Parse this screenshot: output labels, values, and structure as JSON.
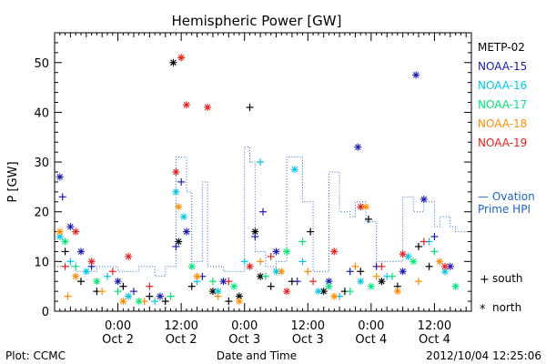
{
  "chart_data": {
    "type": "scatter",
    "title": "Hemispheric Power [GW]",
    "ylabel": "P [GW]",
    "xlabel": "Date and Time",
    "ylim": [
      0,
      56
    ],
    "yticks": [
      0,
      10,
      20,
      30,
      40,
      50
    ],
    "xlim": [
      0,
      79
    ],
    "xticks": [
      {
        "x": 12,
        "time": "0:00",
        "date": "Oct 2"
      },
      {
        "x": 24,
        "time": "12:00",
        "date": "Oct 2"
      },
      {
        "x": 36,
        "time": "0:00",
        "date": "Oct 3"
      },
      {
        "x": 48,
        "time": "12:00",
        "date": "Oct 3"
      },
      {
        "x": 60,
        "time": "0:00",
        "date": "Oct 4"
      },
      {
        "x": 72,
        "time": "12:00",
        "date": "Oct 4"
      }
    ],
    "grid": false,
    "legend_placement": "right",
    "symbols": {
      "south": {
        "marker": "+",
        "label": "south"
      },
      "north": {
        "marker": "*",
        "label": "north"
      }
    },
    "series": [
      {
        "name": "METP-02",
        "color": "#000000",
        "points": [
          [
            2,
            12,
            "+"
          ],
          [
            5,
            6,
            "+"
          ],
          [
            8,
            4,
            "+"
          ],
          [
            13,
            5,
            "+"
          ],
          [
            18,
            3,
            "+"
          ],
          [
            21,
            2,
            "+"
          ],
          [
            22.5,
            50,
            "*"
          ],
          [
            23.5,
            14,
            "*"
          ],
          [
            26,
            5,
            "+"
          ],
          [
            30,
            4,
            "*"
          ],
          [
            33,
            2,
            "+"
          ],
          [
            35,
            3,
            "*"
          ],
          [
            37,
            41,
            "+"
          ],
          [
            38,
            16,
            "*"
          ],
          [
            39,
            7,
            "*"
          ],
          [
            41,
            5,
            "+"
          ],
          [
            45,
            6,
            "+"
          ],
          [
            48.5,
            16,
            "+"
          ],
          [
            51,
            4,
            "*"
          ],
          [
            55,
            4,
            "+"
          ],
          [
            58,
            8,
            "+"
          ],
          [
            59.5,
            18.5,
            "+"
          ],
          [
            62,
            6,
            "*"
          ],
          [
            65,
            5,
            "+"
          ],
          [
            69,
            13,
            "+"
          ],
          [
            71,
            9,
            "+"
          ]
        ]
      },
      {
        "name": "NOAA-15",
        "color": "#1a1ab4",
        "points": [
          [
            1,
            27,
            "*"
          ],
          [
            1.5,
            23,
            "+"
          ],
          [
            3,
            17,
            "*"
          ],
          [
            5,
            12,
            "*"
          ],
          [
            7,
            9,
            "+"
          ],
          [
            12,
            6,
            "*"
          ],
          [
            15,
            4,
            "+"
          ],
          [
            20,
            3,
            "*"
          ],
          [
            23,
            13,
            "+"
          ],
          [
            24,
            26,
            "+"
          ],
          [
            25,
            16,
            "*"
          ],
          [
            28,
            7,
            "+"
          ],
          [
            32,
            6,
            "*"
          ],
          [
            38,
            15,
            "+"
          ],
          [
            39.5,
            20,
            "+"
          ],
          [
            42,
            12,
            "*"
          ],
          [
            46,
            6,
            "+"
          ],
          [
            52,
            6,
            "*"
          ],
          [
            56,
            8,
            "+"
          ],
          [
            57.5,
            33,
            "*"
          ],
          [
            61,
            9,
            "+"
          ],
          [
            66,
            8,
            "*"
          ],
          [
            68.5,
            47.5,
            "*"
          ],
          [
            70,
            22.5,
            "*"
          ],
          [
            72,
            15,
            "+"
          ],
          [
            75,
            9,
            "*"
          ]
        ]
      },
      {
        "name": "NOAA-16",
        "color": "#00c8e6",
        "points": [
          [
            1,
            15,
            "*"
          ],
          [
            3,
            10,
            "+"
          ],
          [
            6,
            8,
            "*"
          ],
          [
            10,
            7,
            "+"
          ],
          [
            14,
            3,
            "*"
          ],
          [
            19,
            2,
            "+"
          ],
          [
            23,
            24,
            "*"
          ],
          [
            24.5,
            19,
            "*"
          ],
          [
            27,
            6,
            "+"
          ],
          [
            31,
            4,
            "*"
          ],
          [
            36,
            10,
            "+"
          ],
          [
            39,
            30,
            "+"
          ],
          [
            42,
            8,
            "*"
          ],
          [
            45.5,
            28.5,
            "*"
          ],
          [
            47,
            10,
            "+"
          ],
          [
            50,
            4,
            "*"
          ],
          [
            54,
            3,
            "+"
          ],
          [
            58,
            6,
            "*"
          ],
          [
            63,
            7,
            "+"
          ],
          [
            67,
            11,
            "*"
          ],
          [
            71,
            14,
            "+"
          ],
          [
            74,
            8,
            "*"
          ]
        ]
      },
      {
        "name": "NOAA-17",
        "color": "#00e678",
        "points": [
          [
            2,
            14,
            "*"
          ],
          [
            4,
            9,
            "+"
          ],
          [
            8,
            6,
            "*"
          ],
          [
            12,
            4,
            "+"
          ],
          [
            16,
            2,
            "*"
          ],
          [
            22,
            3,
            "+"
          ],
          [
            26,
            9,
            "*"
          ],
          [
            30,
            6,
            "+"
          ],
          [
            34,
            5,
            "*"
          ],
          [
            40,
            7,
            "+"
          ],
          [
            44,
            12,
            "*"
          ],
          [
            47,
            14,
            "+"
          ],
          [
            52,
            5,
            "*"
          ],
          [
            56,
            4,
            "+"
          ],
          [
            60,
            5,
            "*"
          ],
          [
            64,
            7,
            "+"
          ],
          [
            68,
            10,
            "*"
          ],
          [
            72,
            12,
            "+"
          ],
          [
            76,
            5,
            "*"
          ]
        ]
      },
      {
        "name": "NOAA-18",
        "color": "#ff8c00",
        "points": [
          [
            1,
            16,
            "*"
          ],
          [
            2.5,
            3,
            "+"
          ],
          [
            4,
            7,
            "*"
          ],
          [
            9,
            4,
            "+"
          ],
          [
            13,
            2,
            "*"
          ],
          [
            17,
            2,
            "+"
          ],
          [
            24,
            51,
            "+"
          ],
          [
            23.5,
            21,
            "*"
          ],
          [
            27,
            7,
            "*"
          ],
          [
            31,
            3,
            "+"
          ],
          [
            35,
            2,
            "*"
          ],
          [
            39,
            10,
            "+"
          ],
          [
            43,
            8,
            "*"
          ],
          [
            48,
            8,
            "+"
          ],
          [
            53,
            3,
            "*"
          ],
          [
            57,
            9,
            "+"
          ],
          [
            59,
            21,
            "*"
          ],
          [
            61,
            7,
            "+"
          ],
          [
            65,
            4,
            "*"
          ],
          [
            69,
            6,
            "+"
          ],
          [
            73,
            10,
            "*"
          ]
        ]
      },
      {
        "name": "NOAA-19",
        "color": "#e61e1e",
        "points": [
          [
            2,
            9,
            "+"
          ],
          [
            4,
            16,
            "*"
          ],
          [
            7,
            10,
            "*"
          ],
          [
            11,
            8,
            "+"
          ],
          [
            14,
            11,
            "*"
          ],
          [
            18,
            5,
            "+"
          ],
          [
            23,
            28,
            "*"
          ],
          [
            24,
            51,
            "*"
          ],
          [
            25,
            41.5,
            "*"
          ],
          [
            29,
            41,
            "*"
          ],
          [
            33,
            6,
            "+"
          ],
          [
            37,
            9,
            "*"
          ],
          [
            41,
            11,
            "+"
          ],
          [
            44,
            4,
            "*"
          ],
          [
            49,
            6,
            "+"
          ],
          [
            53,
            12,
            "*"
          ],
          [
            58,
            21,
            "*"
          ],
          [
            62,
            9,
            "+"
          ],
          [
            66,
            11.5,
            "*"
          ],
          [
            70,
            14,
            "+"
          ],
          [
            74,
            9,
            "*"
          ]
        ]
      }
    ],
    "ovation": {
      "name": "— Ovation Prime HPI",
      "color": "#1e64c8",
      "steps": [
        [
          0,
          9
        ],
        [
          4,
          8
        ],
        [
          8,
          9
        ],
        [
          12,
          8
        ],
        [
          16,
          9
        ],
        [
          19,
          7
        ],
        [
          21,
          9
        ],
        [
          23,
          31
        ],
        [
          24,
          31
        ],
        [
          25,
          24
        ],
        [
          26,
          10
        ],
        [
          28,
          26
        ],
        [
          29,
          9
        ],
        [
          32,
          8
        ],
        [
          36,
          33
        ],
        [
          37,
          30
        ],
        [
          38,
          12
        ],
        [
          40,
          9
        ],
        [
          42,
          10
        ],
        [
          44,
          31
        ],
        [
          47,
          22
        ],
        [
          49,
          8
        ],
        [
          52,
          28
        ],
        [
          54,
          20
        ],
        [
          56,
          19
        ],
        [
          57,
          22
        ],
        [
          59,
          18
        ],
        [
          61,
          10
        ],
        [
          63,
          10
        ],
        [
          66,
          23
        ],
        [
          68,
          20
        ],
        [
          70,
          22
        ],
        [
          72,
          17
        ],
        [
          73,
          19
        ],
        [
          75,
          17
        ],
        [
          76,
          16
        ],
        [
          77,
          16
        ],
        [
          79,
          16
        ]
      ]
    },
    "ovation_label_line1": "— Ovation",
    "ovation_label_line2": "Prime HPI"
  },
  "footer": {
    "plot_credit": "Plot: CCMC",
    "xlabel_text": "Date and Time",
    "timestamp": "2012/10/04 12:25:06"
  }
}
